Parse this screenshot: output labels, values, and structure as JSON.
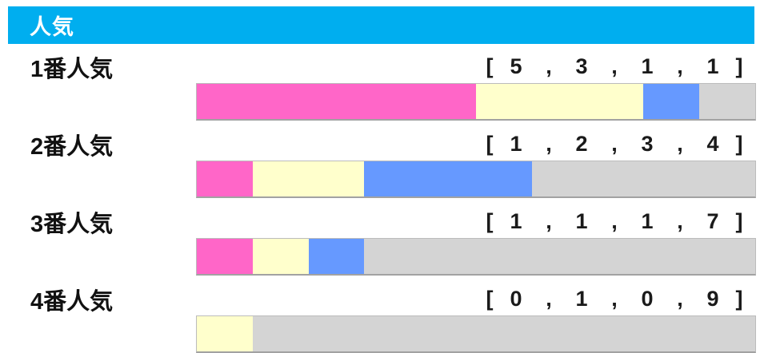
{
  "header": {
    "title": "人気",
    "background_color": "#00aeef",
    "text_color": "#ffffff"
  },
  "value_format": {
    "open_bracket": "[",
    "separator": ",",
    "close_bracket": "]"
  },
  "colors": {
    "segment_1": "#ff66c8",
    "segment_2": "#ffffcc",
    "segment_3": "#6699ff",
    "segment_4": "#d4d4d4"
  },
  "rows": [
    {
      "label": "1番人気",
      "values": [
        5,
        3,
        1,
        1
      ]
    },
    {
      "label": "2番人気",
      "values": [
        1,
        2,
        3,
        4
      ]
    },
    {
      "label": "3番人気",
      "values": [
        1,
        1,
        1,
        7
      ]
    },
    {
      "label": "4番人気",
      "values": [
        0,
        1,
        0,
        9
      ]
    }
  ],
  "chart_data": {
    "type": "bar",
    "subtype": "stacked-horizontal",
    "title": "人気",
    "categories": [
      "1番人気",
      "2番人気",
      "3番人気",
      "4番人気"
    ],
    "series": [
      {
        "name": "segment-1",
        "color": "#ff66c8",
        "values": [
          5,
          1,
          1,
          0
        ]
      },
      {
        "name": "segment-2",
        "color": "#ffffcc",
        "values": [
          3,
          2,
          1,
          1
        ]
      },
      {
        "name": "segment-3",
        "color": "#6699ff",
        "values": [
          1,
          3,
          1,
          0
        ]
      },
      {
        "name": "segment-4",
        "color": "#d4d4d4",
        "values": [
          1,
          4,
          7,
          9
        ]
      }
    ],
    "row_totals": [
      10,
      10,
      10,
      10
    ],
    "annotations": [
      "[ 5 , 3 , 1 , 1 ]",
      "[ 1 , 2 , 3 , 4 ]",
      "[ 1 , 1 , 1 , 7 ]",
      "[ 0 , 1 , 0 , 9 ]"
    ],
    "xlim": [
      0,
      10
    ],
    "legend": "none",
    "grid": false
  }
}
